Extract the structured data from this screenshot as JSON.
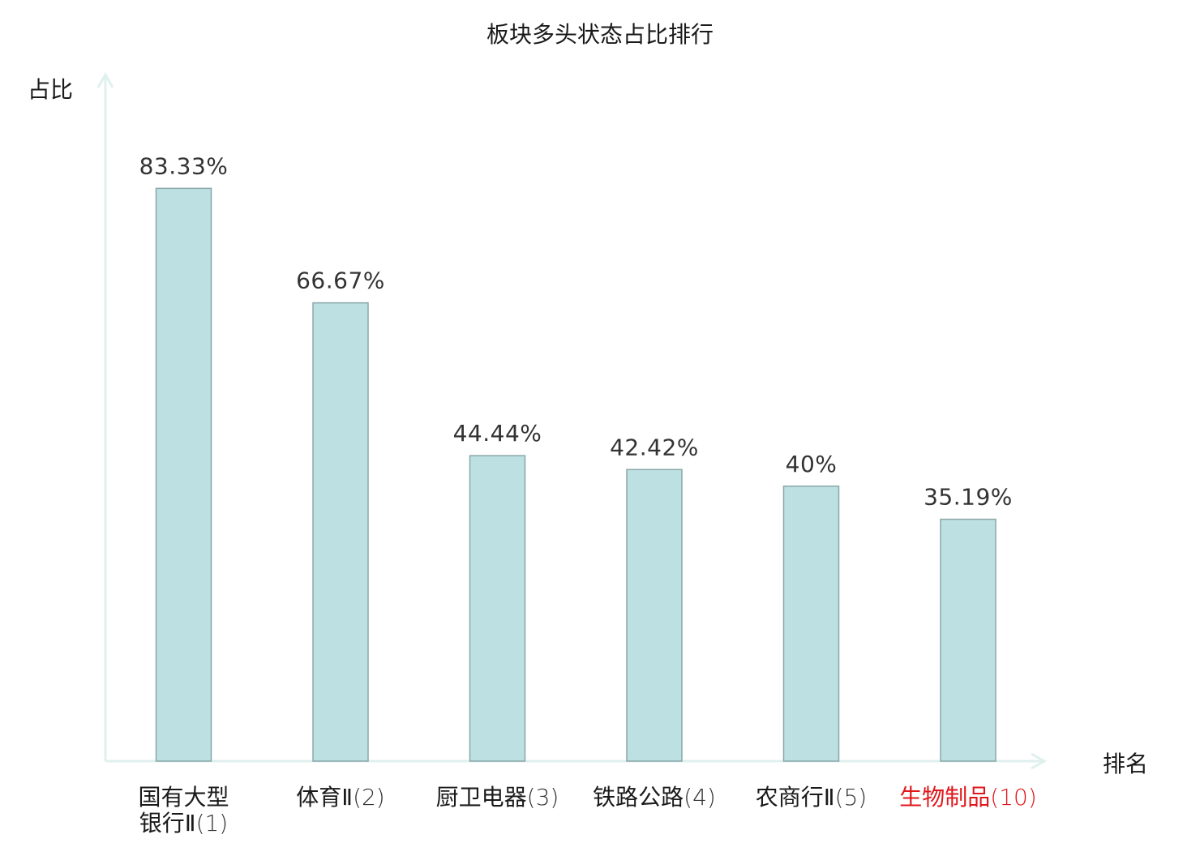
{
  "chart_data": {
    "type": "bar",
    "title": "板块多头状态占比排行",
    "ylabel": "占比",
    "xlabel": "排名",
    "ylim": [
      0,
      100
    ],
    "grid": false,
    "categories": [
      {
        "lines": [
          "国有大型",
          "银行Ⅱ(1)"
        ],
        "name": "国有大型银行Ⅱ",
        "rank": "(1)",
        "highlight": false
      },
      {
        "lines": [
          "体育Ⅱ(2)"
        ],
        "name": "体育Ⅱ",
        "rank": "(2)",
        "highlight": false
      },
      {
        "lines": [
          "厨卫电器(3)"
        ],
        "name": "厨卫电器",
        "rank": "(3)",
        "highlight": false
      },
      {
        "lines": [
          "铁路公路(4)"
        ],
        "name": "铁路公路",
        "rank": "(4)",
        "highlight": false
      },
      {
        "lines": [
          "农商行Ⅱ(5)"
        ],
        "name": "农商行Ⅱ",
        "rank": "(5)",
        "highlight": false
      },
      {
        "lines": [
          "生物制品(10)"
        ],
        "name": "生物制品",
        "rank": "(10)",
        "highlight": true
      }
    ],
    "values": [
      83.33,
      66.67,
      44.44,
      42.42,
      40,
      35.19
    ],
    "value_labels": [
      "83.33%",
      "66.67%",
      "44.44%",
      "42.42%",
      "40%",
      "35.19%"
    ],
    "colors": {
      "bar_fill": "#bde0e3",
      "bar_stroke": "#8aa7a9",
      "axis": "#dff0ee",
      "highlight_text": "#e0161b"
    }
  }
}
